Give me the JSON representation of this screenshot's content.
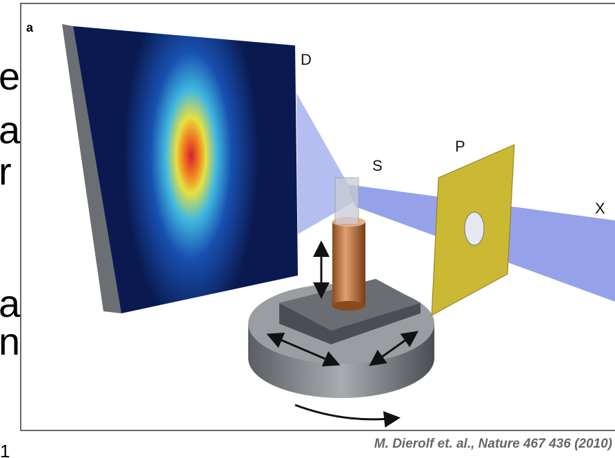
{
  "figure": {
    "panel_label": "a",
    "labels": {
      "detector": "D",
      "sample": "S",
      "pinhole": "P",
      "xray": "X"
    },
    "citation": "M. Dierolf et. al., Nature 467 436 (2010)"
  },
  "slide_fragments": [
    "e",
    "a",
    "r",
    "a",
    "n",
    "1"
  ]
}
